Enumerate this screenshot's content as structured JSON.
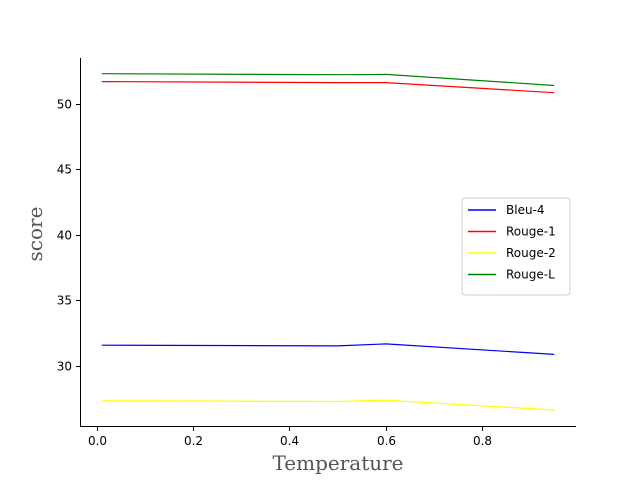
{
  "chart_data": {
    "type": "line",
    "xlabel": "Temperature",
    "ylabel": "score",
    "xlim": [
      -0.035,
      0.995
    ],
    "ylim": [
      25.3,
      53.5
    ],
    "xticks": [
      0.0,
      0.2,
      0.4,
      0.6,
      0.8
    ],
    "xtick_labels": [
      "0.0",
      "0.2",
      "0.4",
      "0.6",
      "0.8"
    ],
    "yticks": [
      30,
      35,
      40,
      45,
      50
    ],
    "ytick_labels": [
      "30",
      "35",
      "40",
      "45",
      "50"
    ],
    "x": [
      0.01,
      0.5,
      0.6,
      0.95
    ],
    "series": [
      {
        "name": "Bleu-4",
        "color": "#0000ff",
        "values": [
          31.55,
          31.5,
          31.65,
          30.85
        ]
      },
      {
        "name": "Rouge-1",
        "color": "#ff0000",
        "values": [
          51.7,
          51.62,
          51.62,
          50.85
        ]
      },
      {
        "name": "Rouge-2",
        "color": "#ffff00",
        "values": [
          27.3,
          27.25,
          27.35,
          26.6
        ]
      },
      {
        "name": "Rouge-L",
        "color": "#008000",
        "values": [
          52.3,
          52.22,
          52.25,
          51.4
        ]
      }
    ],
    "legend_position": "center-right",
    "grid": false,
    "spines": "left-bottom"
  }
}
